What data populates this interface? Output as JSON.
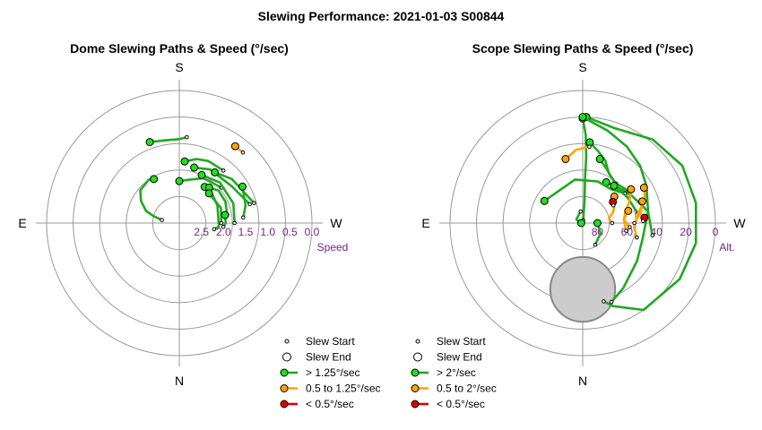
{
  "title": "Slewing Performance: 2021-01-03 S00844",
  "colors": {
    "fast": "#22a822",
    "fast_marker": "#22dd22",
    "medium": "#ffa500",
    "slow": "#dd0000",
    "tick": "#7a1f8a",
    "grid": "#999999",
    "dome_marker": "#cccccc"
  },
  "compass": {
    "top": "S",
    "bottom": "N",
    "left": "E",
    "right": "W"
  },
  "chart_data": [
    {
      "type": "polar-scatter",
      "title": "Dome Slewing Paths & Speed (°/sec)",
      "radial_axis": "Speed",
      "radial_ticks": [
        "2.5",
        "2.0",
        "1.5",
        "1.0",
        "0.5",
        "0.0"
      ],
      "rlim": [
        3.0,
        0.0
      ],
      "azimuth_convention": "0=S top, 90=W right, 180=N bottom, 270=E left",
      "legend": [
        {
          "key": "start",
          "label": "Slew Start"
        },
        {
          "key": "end",
          "label": "Slew End"
        },
        {
          "key": "fast",
          "label": "> 1.25°/sec"
        },
        {
          "key": "medium",
          "label": "0.5 to 1.25°/sec"
        },
        {
          "key": "slow",
          "label": "< 0.5°/sec"
        }
      ],
      "slews": [
        {
          "speed": "fast",
          "points": [
            [
              330,
              1.85
            ],
            [
              325,
              1.8
            ],
            [
              310,
              1.85
            ],
            [
              300,
              2.0
            ],
            [
              290,
              2.2
            ],
            [
              285,
              2.4
            ],
            [
              280,
              2.6
            ]
          ]
        },
        {
          "speed": "fast",
          "points": [
            [
              340,
              1.05
            ],
            [
              350,
              1.1
            ],
            [
              0,
              1.1
            ],
            [
              5,
              1.05
            ]
          ]
        },
        {
          "speed": "fast",
          "points": [
            [
              5,
              1.6
            ],
            [
              15,
              1.5
            ],
            [
              25,
              1.45
            ],
            [
              40,
              1.45
            ]
          ]
        },
        {
          "speed": "fast",
          "points": [
            [
              0,
              2.05
            ],
            [
              12,
              2.0
            ],
            [
              28,
              1.85
            ],
            [
              50,
              1.75
            ]
          ]
        },
        {
          "speed": "fast",
          "points": [
            [
              15,
              1.7
            ],
            [
              30,
              1.6
            ],
            [
              55,
              1.55
            ],
            [
              75,
              1.35
            ]
          ]
        },
        {
          "speed": "fast",
          "points": [
            [
              35,
              2.0
            ],
            [
              50,
              1.85
            ],
            [
              65,
              1.85
            ],
            [
              80,
              1.9
            ]
          ]
        },
        {
          "speed": "fast",
          "points": [
            [
              35,
              1.6
            ],
            [
              50,
              1.45
            ],
            [
              75,
              1.25
            ]
          ]
        },
        {
          "speed": "fast",
          "points": [
            [
              25,
              1.8
            ],
            [
              45,
              1.7
            ],
            [
              70,
              1.7
            ],
            [
              90,
              1.75
            ]
          ]
        },
        {
          "speed": "fast",
          "points": [
            [
              40,
              1.95
            ],
            [
              65,
              2.05
            ],
            [
              95,
              2.1
            ],
            [
              100,
              2.2
            ]
          ]
        },
        {
          "speed": "fast",
          "points": [
            [
              45,
              2.05
            ],
            [
              70,
              2.0
            ],
            [
              90,
              2.05
            ]
          ]
        },
        {
          "speed": "fast",
          "points": [
            [
              60,
              1.35
            ],
            [
              75,
              1.45
            ],
            [
              85,
              1.55
            ]
          ]
        },
        {
          "speed": "fast",
          "points": [
            [
              80,
              1.95
            ],
            [
              90,
              1.95
            ],
            [
              95,
              2.0
            ]
          ]
        },
        {
          "speed": "medium",
          "points": [
            [
              36,
              0.85
            ],
            [
              42,
              0.85
            ]
          ]
        }
      ]
    },
    {
      "type": "polar-scatter",
      "title": "Scope Slewing Paths & Speed (°/sec)",
      "radial_axis": "Alt.",
      "radial_ticks": [
        "80",
        "60",
        "40",
        "20",
        "0"
      ],
      "rlim": [
        90,
        0
      ],
      "azimuth_convention": "0=S top, 90=W right, 180=N bottom, 270=E left",
      "dome_obstruction": {
        "az": 180,
        "alt": 45,
        "radius_deg": 22
      },
      "legend": [
        {
          "key": "start",
          "label": "Slew Start"
        },
        {
          "key": "end",
          "label": "Slew End"
        },
        {
          "key": "fast",
          "label": "> 2°/sec"
        },
        {
          "key": "medium",
          "label": "0.5 to 2°/sec"
        },
        {
          "key": "slow",
          "label": "< 0.5°/sec"
        }
      ],
      "slews": [
        {
          "speed": "fast",
          "points": [
            [
              2,
              18
            ],
            [
              18,
              22
            ],
            [
              40,
              16
            ],
            [
              60,
              12
            ],
            [
              80,
              12
            ],
            [
              100,
              12
            ],
            [
              120,
              14
            ],
            [
              145,
              18
            ],
            [
              160,
              30
            ],
            [
              165,
              35
            ]
          ]
        },
        {
          "speed": "fast",
          "points": [
            [
              0,
              19
            ],
            [
              2,
              30
            ],
            [
              3,
              45
            ],
            [
              3,
              60
            ],
            [
              5,
              75
            ],
            [
              8,
              88
            ]
          ]
        },
        {
          "speed": "fast",
          "points": [
            [
              0,
              18
            ],
            [
              15,
              25
            ],
            [
              30,
              30
            ],
            [
              45,
              35
            ],
            [
              60,
              40
            ],
            [
              80,
              45
            ],
            [
              105,
              48
            ],
            [
              125,
              45
            ],
            [
              148,
              38
            ],
            [
              160,
              33
            ]
          ]
        },
        {
          "speed": "fast",
          "points": [
            [
              5,
              35
            ],
            [
              12,
              40
            ],
            [
              20,
              45
            ],
            [
              28,
              52
            ],
            [
              40,
              55
            ]
          ]
        },
        {
          "speed": "fast",
          "points": [
            [
              15,
              45
            ],
            [
              24,
              50
            ],
            [
              38,
              55
            ],
            [
              55,
              52
            ]
          ]
        },
        {
          "speed": "fast",
          "points": [
            [
              30,
              58
            ],
            [
              45,
              56
            ],
            [
              60,
              52
            ],
            [
              80,
              45
            ],
            [
              100,
              42
            ]
          ]
        },
        {
          "speed": "fast",
          "points": [
            [
              300,
              60
            ],
            [
              350,
              60
            ],
            [
              20,
              60
            ],
            [
              40,
              60
            ],
            [
              55,
              55
            ]
          ]
        },
        {
          "speed": "fast",
          "points": [
            [
              40,
              57
            ],
            [
              60,
              55
            ],
            [
              80,
              52
            ]
          ]
        },
        {
          "speed": "fast",
          "points": [
            [
              90,
              80
            ],
            [
              120,
              76
            ],
            [
              150,
              73
            ]
          ]
        },
        {
          "speed": "fast",
          "points": [
            [
              270,
              89
            ],
            [
              300,
              85
            ],
            [
              350,
              82
            ]
          ]
        },
        {
          "speed": "medium",
          "points": [
            [
              345,
              45
            ],
            [
              355,
              40
            ],
            [
              5,
              38
            ]
          ]
        },
        {
          "speed": "medium",
          "points": [
            [
              50,
              62
            ],
            [
              60,
              65
            ],
            [
              70,
              68
            ],
            [
              80,
              72
            ],
            [
              90,
              70
            ]
          ]
        },
        {
          "speed": "medium",
          "points": [
            [
              55,
              50
            ],
            [
              65,
              55
            ],
            [
              75,
              60
            ],
            [
              85,
              62
            ],
            [
              95,
              58
            ]
          ]
        },
        {
          "speed": "medium",
          "points": [
            [
              60,
              42
            ],
            [
              70,
              45
            ],
            [
              80,
              52
            ],
            [
              95,
              55
            ],
            [
              105,
              52
            ]
          ]
        },
        {
          "speed": "medium",
          "points": [
            [
              70,
              47
            ],
            [
              80,
              50
            ],
            [
              90,
              55
            ]
          ]
        },
        {
          "speed": "medium",
          "points": [
            [
              75,
              58
            ],
            [
              85,
              62
            ],
            [
              100,
              60
            ]
          ]
        },
        {
          "speed": "slow",
          "points": [
            [
              55,
              65
            ],
            [
              60,
              66
            ]
          ]
        },
        {
          "speed": "slow",
          "points": [
            [
              85,
              48
            ],
            [
              88,
              49
            ]
          ]
        }
      ]
    }
  ]
}
